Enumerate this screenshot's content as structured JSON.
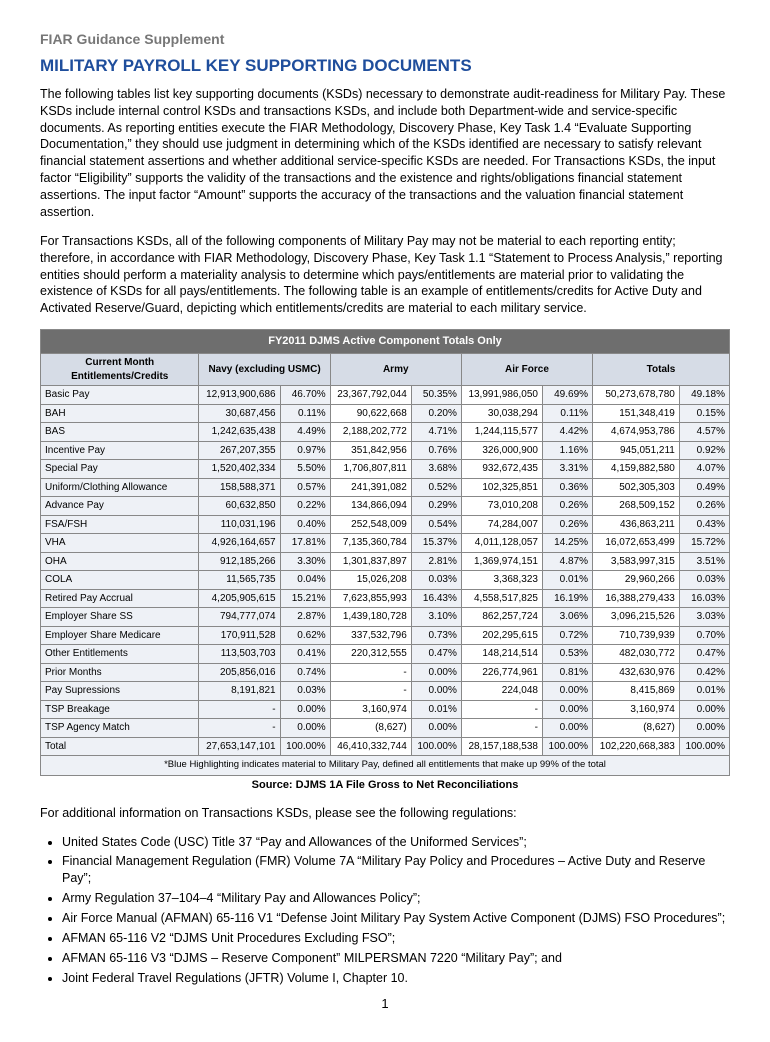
{
  "header": "FIAR Guidance Supplement",
  "title": "MILITARY PAYROLL KEY SUPPORTING DOCUMENTS",
  "para1": "The following tables list key supporting documents (KSDs) necessary to demonstrate audit-readiness for Military Pay. These KSDs include internal control KSDs and transactions KSDs, and include both Department-wide and service-specific documents. As reporting entities execute the FIAR Methodology, Discovery Phase, Key Task 1.4 “Evaluate Supporting Documentation,” they should use judgment in determining which of the KSDs identified are necessary to satisfy relevant financial statement assertions and whether additional service-specific KSDs are needed. For Transactions KSDs, the input factor “Eligibility” supports the validity of the transactions and the existence and rights/obligations financial statement assertions. The input factor “Amount” supports the accuracy of the transactions and the valuation financial statement assertion.",
  "para2": "For Transactions KSDs, all of the following components of Military Pay may not be material to each reporting entity; therefore, in accordance with FIAR Methodology, Discovery Phase, Key Task 1.1 “Statement to Process Analysis,” reporting entities should perform a materiality analysis to determine which pays/entitlements are material prior to validating the existence of KSDs for all pays/entitlements. The following table is an example of entitlements/credits for Active Duty and Activated Reserve/Guard, depicting which entitlements/credits are material to each military service.",
  "table_title": "FY2011 DJMS Active Component Totals Only",
  "col_labels": {
    "c0": "Current Month Entitlements/Credits",
    "c1": "Navy (excluding USMC)",
    "c2": "Army",
    "c3": "Air Force",
    "c4": "Totals"
  },
  "rows": [
    {
      "l": "Basic Pay",
      "n": "12,913,900,686",
      "np": "46.70%",
      "a": "23,367,792,044",
      "ap": "50.35%",
      "f": "13,991,986,050",
      "fp": "49.69%",
      "t": "50,273,678,780",
      "tp": "49.18%"
    },
    {
      "l": "BAH",
      "n": "30,687,456",
      "np": "0.11%",
      "a": "90,622,668",
      "ap": "0.20%",
      "f": "30,038,294",
      "fp": "0.11%",
      "t": "151,348,419",
      "tp": "0.15%"
    },
    {
      "l": "BAS",
      "n": "1,242,635,438",
      "np": "4.49%",
      "a": "2,188,202,772",
      "ap": "4.71%",
      "f": "1,244,115,577",
      "fp": "4.42%",
      "t": "4,674,953,786",
      "tp": "4.57%"
    },
    {
      "l": "Incentive Pay",
      "n": "267,207,355",
      "np": "0.97%",
      "a": "351,842,956",
      "ap": "0.76%",
      "f": "326,000,900",
      "fp": "1.16%",
      "t": "945,051,211",
      "tp": "0.92%"
    },
    {
      "l": "Special Pay",
      "n": "1,520,402,334",
      "np": "5.50%",
      "a": "1,706,807,811",
      "ap": "3.68%",
      "f": "932,672,435",
      "fp": "3.31%",
      "t": "4,159,882,580",
      "tp": "4.07%"
    },
    {
      "l": "Uniform/Clothing Allowance",
      "n": "158,588,371",
      "np": "0.57%",
      "a": "241,391,082",
      "ap": "0.52%",
      "f": "102,325,851",
      "fp": "0.36%",
      "t": "502,305,303",
      "tp": "0.49%"
    },
    {
      "l": "Advance Pay",
      "n": "60,632,850",
      "np": "0.22%",
      "a": "134,866,094",
      "ap": "0.29%",
      "f": "73,010,208",
      "fp": "0.26%",
      "t": "268,509,152",
      "tp": "0.26%"
    },
    {
      "l": "FSA/FSH",
      "n": "110,031,196",
      "np": "0.40%",
      "a": "252,548,009",
      "ap": "0.54%",
      "f": "74,284,007",
      "fp": "0.26%",
      "t": "436,863,211",
      "tp": "0.43%"
    },
    {
      "l": "VHA",
      "n": "4,926,164,657",
      "np": "17.81%",
      "a": "7,135,360,784",
      "ap": "15.37%",
      "f": "4,011,128,057",
      "fp": "14.25%",
      "t": "16,072,653,499",
      "tp": "15.72%"
    },
    {
      "l": "OHA",
      "n": "912,185,266",
      "np": "3.30%",
      "a": "1,301,837,897",
      "ap": "2.81%",
      "f": "1,369,974,151",
      "fp": "4.87%",
      "t": "3,583,997,315",
      "tp": "3.51%"
    },
    {
      "l": "COLA",
      "n": "11,565,735",
      "np": "0.04%",
      "a": "15,026,208",
      "ap": "0.03%",
      "f": "3,368,323",
      "fp": "0.01%",
      "t": "29,960,266",
      "tp": "0.03%"
    },
    {
      "l": "Retired Pay Accrual",
      "n": "4,205,905,615",
      "np": "15.21%",
      "a": "7,623,855,993",
      "ap": "16.43%",
      "f": "4,558,517,825",
      "fp": "16.19%",
      "t": "16,388,279,433",
      "tp": "16.03%"
    },
    {
      "l": "Employer Share SS",
      "n": "794,777,074",
      "np": "2.87%",
      "a": "1,439,180,728",
      "ap": "3.10%",
      "f": "862,257,724",
      "fp": "3.06%",
      "t": "3,096,215,526",
      "tp": "3.03%"
    },
    {
      "l": "Employer Share Medicare",
      "n": "170,911,528",
      "np": "0.62%",
      "a": "337,532,796",
      "ap": "0.73%",
      "f": "202,295,615",
      "fp": "0.72%",
      "t": "710,739,939",
      "tp": "0.70%"
    },
    {
      "l": "Other Entitlements",
      "n": "113,503,703",
      "np": "0.41%",
      "a": "220,312,555",
      "ap": "0.47%",
      "f": "148,214,514",
      "fp": "0.53%",
      "t": "482,030,772",
      "tp": "0.47%"
    },
    {
      "l": "Prior Months",
      "n": "205,856,016",
      "np": "0.74%",
      "a": "-",
      "ap": "0.00%",
      "f": "226,774,961",
      "fp": "0.81%",
      "t": "432,630,976",
      "tp": "0.42%"
    },
    {
      "l": "Pay Supressions",
      "n": "8,191,821",
      "np": "0.03%",
      "a": "-",
      "ap": "0.00%",
      "f": "224,048",
      "fp": "0.00%",
      "t": "8,415,869",
      "tp": "0.01%"
    },
    {
      "l": "TSP Breakage",
      "n": "-",
      "np": "0.00%",
      "a": "3,160,974",
      "ap": "0.01%",
      "f": "-",
      "fp": "0.00%",
      "t": "3,160,974",
      "tp": "0.00%"
    },
    {
      "l": "TSP Agency Match",
      "n": "-",
      "np": "0.00%",
      "a": "(8,627)",
      "ap": "0.00%",
      "f": "-",
      "fp": "0.00%",
      "t": "(8,627)",
      "tp": "0.00%"
    },
    {
      "l": " Total",
      "n": "27,653,147,101",
      "np": "100.00%",
      "a": "46,410,332,744",
      "ap": "100.00%",
      "f": "28,157,188,538",
      "fp": "100.00%",
      "t": "102,220,668,383",
      "tp": "100.00%"
    }
  ],
  "table_note": "*Blue Highlighting indicates material to Military Pay, defined all entitlements that make up 99% of the total",
  "source": "Source: DJMS 1A File Gross to Net Reconciliations",
  "para3": "For additional information on Transactions KSDs, please see the following regulations:",
  "bullets": [
    "United States Code (USC) Title 37 “Pay and Allowances of the Uniformed Services”;",
    "Financial Management Regulation (FMR) Volume 7A “Military Pay Policy and Procedures – Active Duty and Reserve Pay”;",
    "Army Regulation 37–104–4 “Military Pay and Allowances Policy”;",
    "Air Force Manual (AFMAN) 65-116 V1 “Defense Joint Military Pay System Active Component (DJMS) FSO Procedures”;",
    "AFMAN 65-116 V2 “DJMS Unit Procedures Excluding FSO”;",
    "AFMAN 65-116 V3 “DJMS – Reserve Component” MILPERSMAN 7220 “Military Pay”; and",
    "Joint Federal Travel Regulations (JFTR) Volume I, Chapter 10."
  ],
  "pagenum": "1"
}
